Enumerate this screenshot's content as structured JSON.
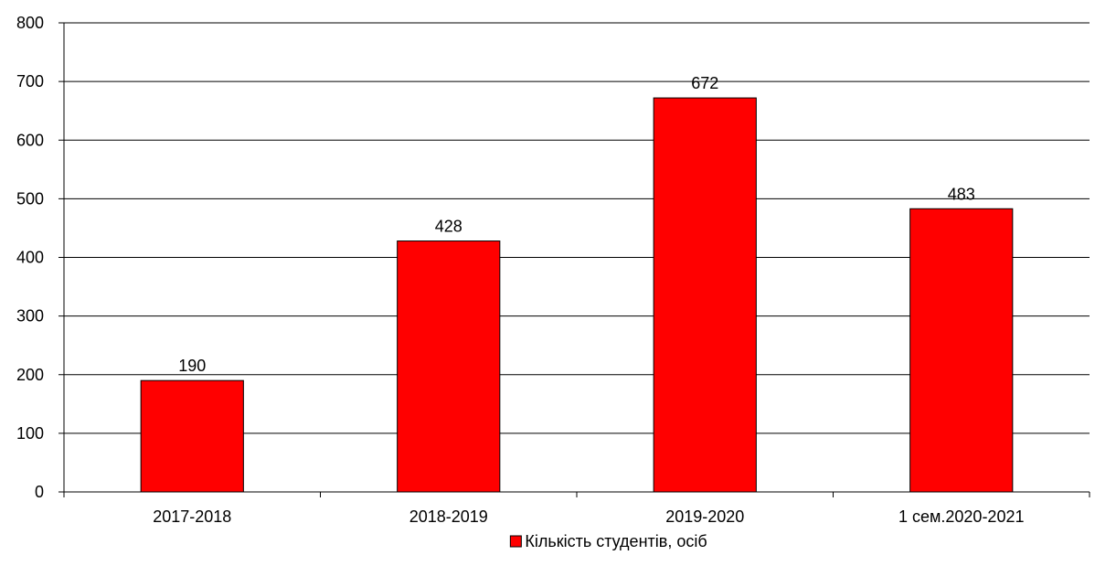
{
  "chart_data": {
    "type": "bar",
    "categories": [
      "2017-2018",
      "2018-2019",
      "2019-2020",
      "1 сем.2020-2021"
    ],
    "series": [
      {
        "name": "Кількість студентів, осіб",
        "values": [
          190,
          428,
          672,
          483
        ]
      }
    ],
    "ylim": [
      0,
      800
    ],
    "yticks": [
      0,
      100,
      200,
      300,
      400,
      500,
      600,
      700,
      800
    ],
    "grid": true,
    "legend_position": "bottom",
    "bar_color": "#ff0000",
    "data_labels": true
  }
}
